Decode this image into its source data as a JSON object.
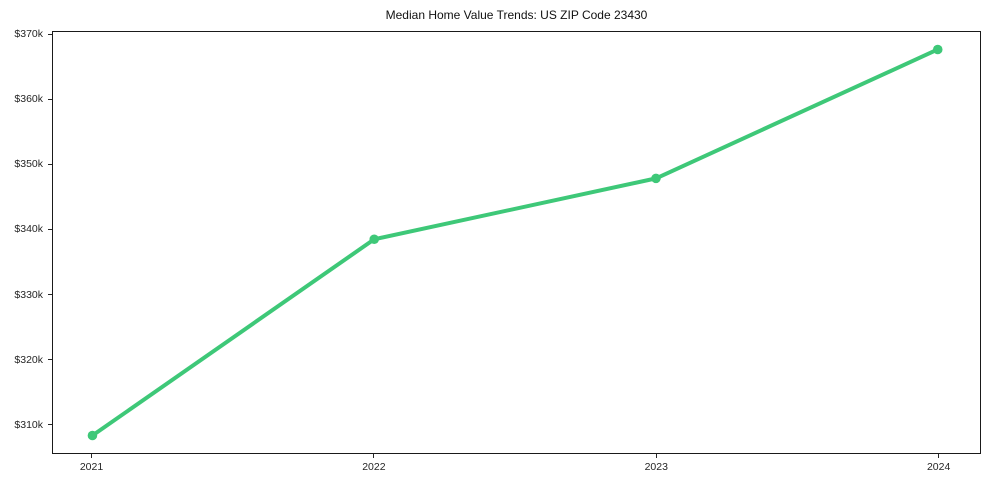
{
  "figure": {
    "background_color": "#ffffff"
  },
  "chart_data": {
    "type": "line",
    "title": "Median Home Value Trends: US ZIP Code 23430",
    "series": [
      {
        "name": "Median home value",
        "x": [
          2021,
          2022,
          2023,
          2024
        ],
        "values": [
          308200,
          338500,
          347900,
          367800
        ],
        "color": "#3ec878",
        "marker": "circle",
        "marker_radius": 4.8,
        "line_width": 4
      }
    ],
    "x_ticks": [
      2021,
      2022,
      2023,
      2024
    ],
    "x_tick_labels": [
      "2021",
      "2022",
      "2023",
      "2024"
    ],
    "y_ticks": [
      310000,
      320000,
      330000,
      340000,
      350000,
      360000,
      370000
    ],
    "y_tick_labels": [
      "$310k",
      "$320k",
      "$330k",
      "$340k",
      "$350k",
      "$360k",
      "$370k"
    ],
    "xlim": [
      2020.86,
      2024.15
    ],
    "ylim": [
      305500,
      370500
    ],
    "grid": false,
    "legend_position": "none",
    "axis_color": "#1a1a1a",
    "tick_label_color": "#262626",
    "title_color": "#111111"
  }
}
